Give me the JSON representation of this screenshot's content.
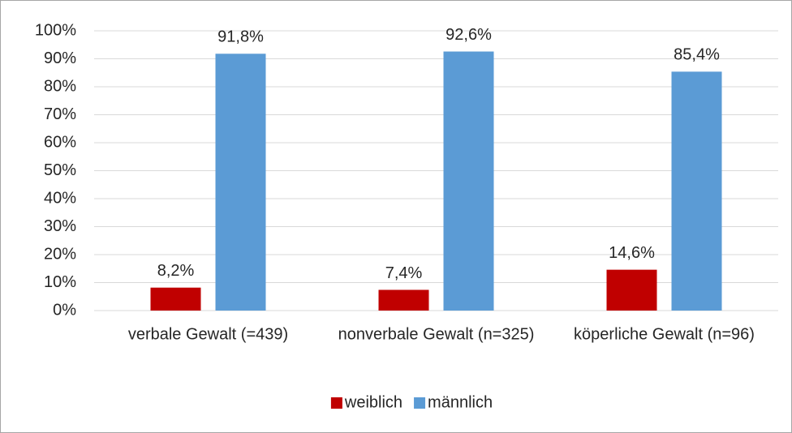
{
  "chart_data": {
    "type": "bar",
    "categories": [
      "verbale Gewalt (=439)",
      "nonverbale Gewalt (n=325)",
      "köperliche Gewalt (n=96)"
    ],
    "series": [
      {
        "name": "weiblich",
        "color": "#c00000",
        "values": [
          8.2,
          7.4,
          14.6
        ],
        "value_labels": [
          "8,2%",
          "7,4%",
          "14,6%"
        ]
      },
      {
        "name": "männlich",
        "color": "#5b9bd5",
        "values": [
          91.8,
          92.6,
          85.4
        ],
        "value_labels": [
          "91,8%",
          "92,6%",
          "85,4%"
        ]
      }
    ],
    "ylim": [
      0,
      100
    ],
    "yticks": [
      {
        "value": 0,
        "label": "0%"
      },
      {
        "value": 10,
        "label": "10%"
      },
      {
        "value": 20,
        "label": "20%"
      },
      {
        "value": 30,
        "label": "30%"
      },
      {
        "value": 40,
        "label": "40%"
      },
      {
        "value": 50,
        "label": "50%"
      },
      {
        "value": 60,
        "label": "60%"
      },
      {
        "value": 70,
        "label": "70%"
      },
      {
        "value": 80,
        "label": "80%"
      },
      {
        "value": 90,
        "label": "90%"
      },
      {
        "value": 100,
        "label": "100%"
      }
    ],
    "grid": true,
    "legend": "bottom"
  }
}
